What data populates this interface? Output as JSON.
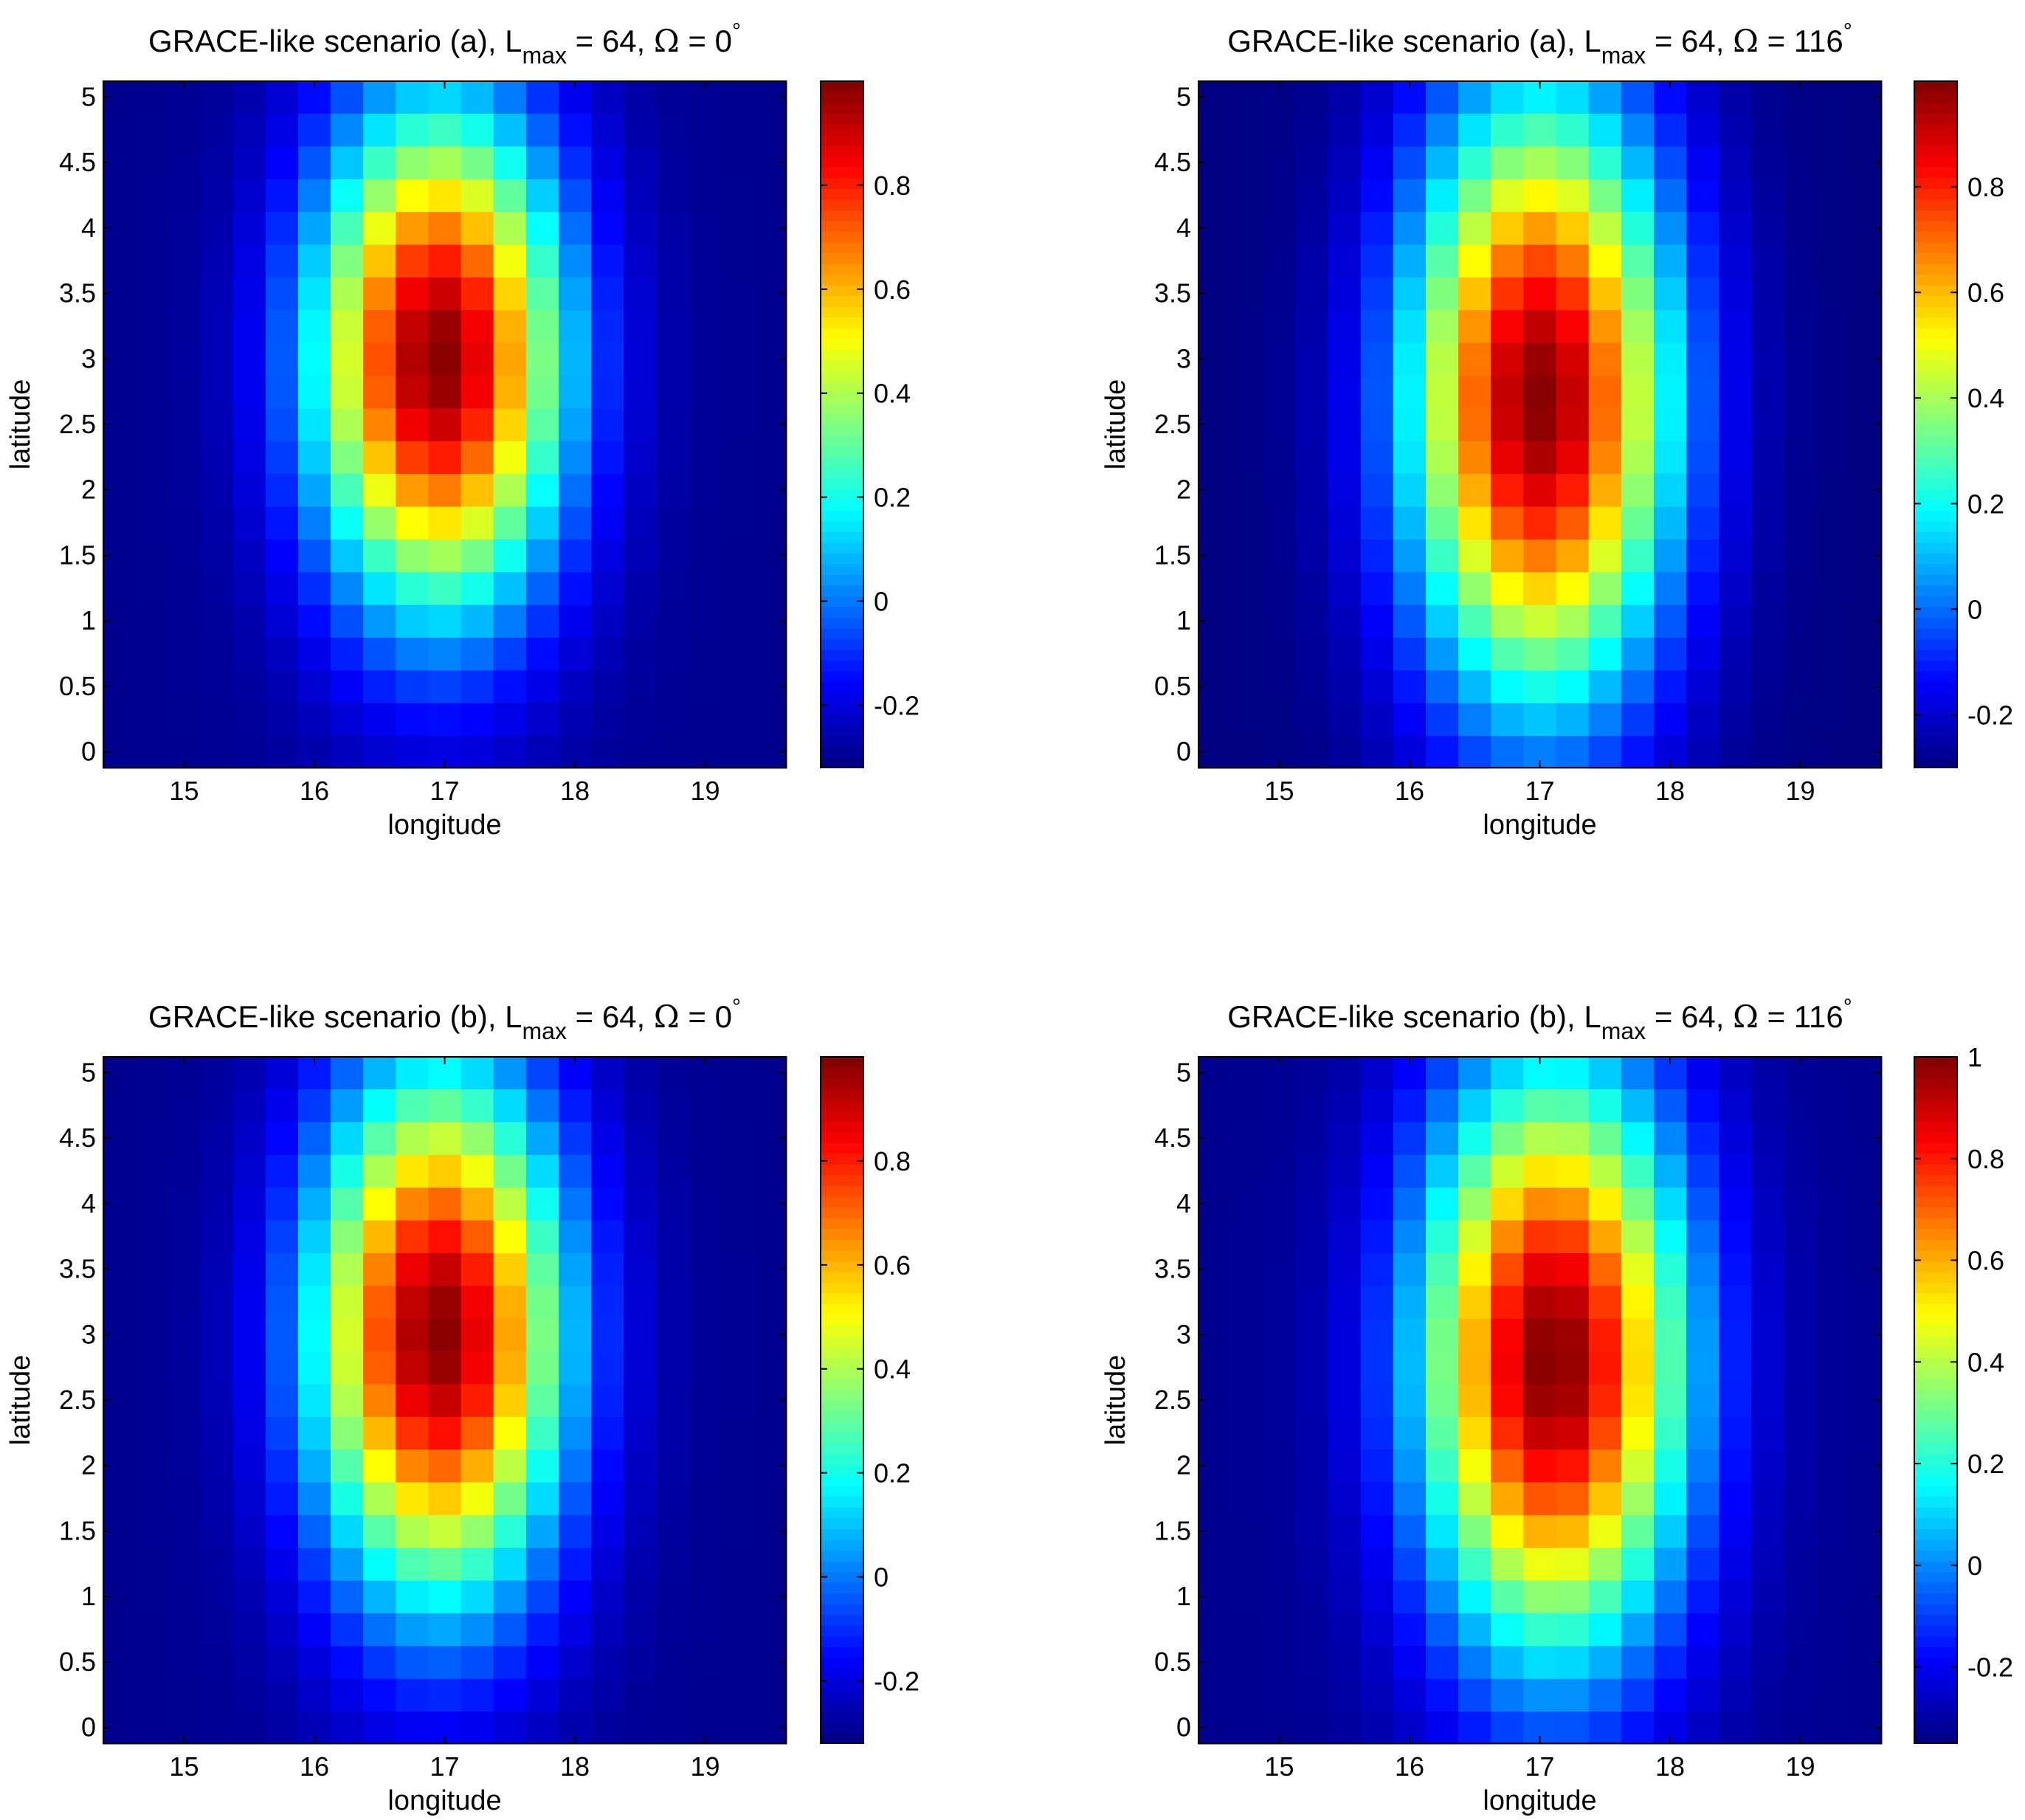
{
  "chart_data": [
    {
      "type": "heatmap",
      "title": "GRACE-like scenario (a), L_max = 64, Ω = 0°",
      "title_parts": {
        "prefix": "GRACE-like scenario (a), L",
        "subscript": "max",
        "middle": " = 64, ",
        "omega": "Ω",
        "suffix": " = 0",
        "degree": "°"
      },
      "xlabel": "longitude",
      "ylabel": "latitude",
      "xlim": [
        14.38,
        19.62
      ],
      "ylim": [
        -0.12,
        5.12
      ],
      "xticks": [
        15,
        16,
        17,
        18,
        19
      ],
      "xtick_labels": [
        "15",
        "16",
        "17",
        "18",
        "19"
      ],
      "yticks": [
        0,
        0.5,
        1,
        1.5,
        2,
        2.5,
        3,
        3.5,
        4,
        4.5,
        5
      ],
      "ytick_labels": [
        "0",
        "0.5",
        "1",
        "1.5",
        "2",
        "2.5",
        "3",
        "3.5",
        "4",
        "4.5",
        "5"
      ],
      "grid": {
        "cols": 21,
        "rows": 21,
        "x0": 14.5,
        "x1": 19.5,
        "y0": 0,
        "y1": 5
      },
      "field": {
        "cx": 16.95,
        "cy": 3.0,
        "sx": 0.95,
        "sy": 1.9,
        "vmin": -0.3,
        "vmax": 0.99
      },
      "clim": [
        -0.32,
        1.0
      ],
      "colorbar_ticks": [
        -0.2,
        0,
        0.2,
        0.4,
        0.6,
        0.8
      ],
      "colorbar_labels": [
        "-0.2",
        "0",
        "0.2",
        "0.4",
        "0.6",
        "0.8"
      ]
    },
    {
      "type": "heatmap",
      "title": "GRACE-like scenario (a), L_max = 64, Ω = 116°",
      "title_parts": {
        "prefix": "GRACE-like scenario (a), L",
        "subscript": "max",
        "middle": " = 64, ",
        "omega": "Ω",
        "suffix": " = 116",
        "degree": "°"
      },
      "xlabel": "longitude",
      "ylabel": "latitude",
      "xlim": [
        14.38,
        19.62
      ],
      "ylim": [
        -0.12,
        5.12
      ],
      "xticks": [
        15,
        16,
        17,
        18,
        19
      ],
      "xtick_labels": [
        "15",
        "16",
        "17",
        "18",
        "19"
      ],
      "yticks": [
        0,
        0.5,
        1,
        1.5,
        2,
        2.5,
        3,
        3.5,
        4,
        4.5,
        5
      ],
      "ytick_labels": [
        "0",
        "0.5",
        "1",
        "1.5",
        "2",
        "2.5",
        "3",
        "3.5",
        "4",
        "4.5",
        "5"
      ],
      "grid": {
        "cols": 21,
        "rows": 21,
        "x0": 14.5,
        "x1": 19.5,
        "y0": 0,
        "y1": 5
      },
      "field": {
        "cx": 17.0,
        "cy": 2.7,
        "sx": 1.0,
        "sy": 2.3,
        "vmin": -0.3,
        "vmax": 0.99
      },
      "clim": [
        -0.3,
        1.0
      ],
      "colorbar_ticks": [
        -0.2,
        0,
        0.2,
        0.4,
        0.6,
        0.8
      ],
      "colorbar_labels": [
        "-0.2",
        "0",
        "0.2",
        "0.4",
        "0.6",
        "0.8"
      ]
    },
    {
      "type": "heatmap",
      "title": "GRACE-like scenario (b), L_max = 64, Ω = 0°",
      "title_parts": {
        "prefix": "GRACE-like scenario (b), L",
        "subscript": "max",
        "middle": " = 64, ",
        "omega": "Ω",
        "suffix": " = 0",
        "degree": "°"
      },
      "xlabel": "longitude",
      "ylabel": "latitude",
      "xlim": [
        14.38,
        19.62
      ],
      "ylim": [
        -0.12,
        5.12
      ],
      "xticks": [
        15,
        16,
        17,
        18,
        19
      ],
      "xtick_labels": [
        "15",
        "16",
        "17",
        "18",
        "19"
      ],
      "yticks": [
        0,
        0.5,
        1,
        1.5,
        2,
        2.5,
        3,
        3.5,
        4,
        4.5,
        5
      ],
      "ytick_labels": [
        "0",
        "0.5",
        "1",
        "1.5",
        "2",
        "2.5",
        "3",
        "3.5",
        "4",
        "4.5",
        "5"
      ],
      "grid": {
        "cols": 21,
        "rows": 21,
        "x0": 14.5,
        "x1": 19.5,
        "y0": 0,
        "y1": 5
      },
      "field": {
        "cx": 16.95,
        "cy": 3.0,
        "sx": 0.95,
        "sy": 2.0,
        "vmin": -0.3,
        "vmax": 0.99
      },
      "clim": [
        -0.32,
        1.0
      ],
      "colorbar_ticks": [
        -0.2,
        0,
        0.2,
        0.4,
        0.6,
        0.8
      ],
      "colorbar_labels": [
        "-0.2",
        "0",
        "0.2",
        "0.4",
        "0.6",
        "0.8"
      ]
    },
    {
      "type": "heatmap",
      "title": "GRACE-like scenario (b), L_max = 64, Ω = 116°",
      "title_parts": {
        "prefix": "GRACE-like scenario (b), L",
        "subscript": "max",
        "middle": " = 64, ",
        "omega": "Ω",
        "suffix": " = 116",
        "degree": "°"
      },
      "xlabel": "longitude",
      "ylabel": "latitude",
      "xlim": [
        14.38,
        19.62
      ],
      "ylim": [
        -0.12,
        5.12
      ],
      "xticks": [
        15,
        16,
        17,
        18,
        19
      ],
      "xtick_labels": [
        "15",
        "16",
        "17",
        "18",
        "19"
      ],
      "yticks": [
        0,
        0.5,
        1,
        1.5,
        2,
        2.5,
        3,
        3.5,
        4,
        4.5,
        5
      ],
      "ytick_labels": [
        "0",
        "0.5",
        "1",
        "1.5",
        "2",
        "2.5",
        "3",
        "3.5",
        "4",
        "4.5",
        "5"
      ],
      "grid": {
        "cols": 21,
        "rows": 21,
        "x0": 14.5,
        "x1": 19.5,
        "y0": 0,
        "y1": 5
      },
      "field": {
        "cx": 17.1,
        "cy": 2.8,
        "sx": 1.0,
        "sy": 2.2,
        "vmin": -0.33,
        "vmax": 1.0
      },
      "clim": [
        -0.35,
        1.0
      ],
      "colorbar_ticks": [
        -0.2,
        0,
        0.2,
        0.4,
        0.6,
        0.8,
        1
      ],
      "colorbar_labels": [
        "-0.2",
        "0",
        "0.2",
        "0.4",
        "0.6",
        "0.8",
        "1"
      ]
    }
  ]
}
